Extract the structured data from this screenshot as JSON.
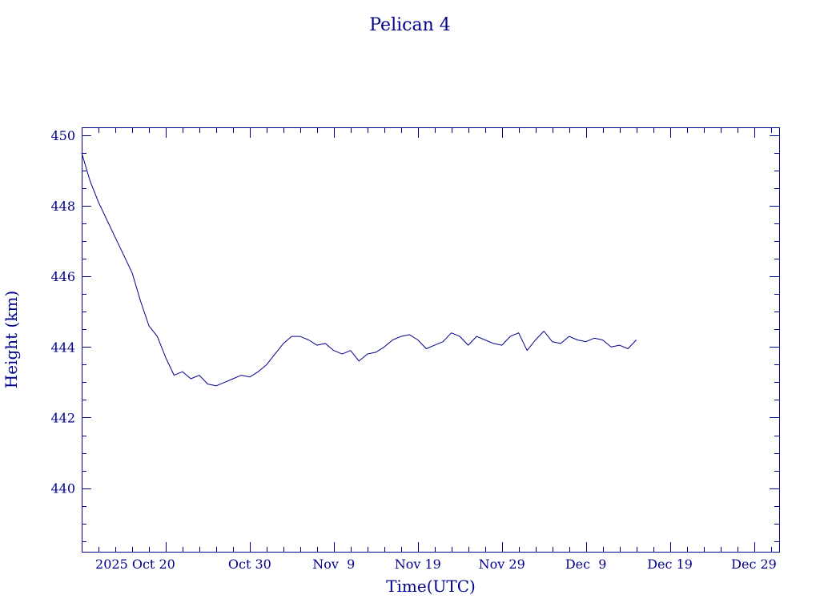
{
  "chart_data": {
    "type": "line",
    "title": "Pelican 4",
    "xlabel": "Time(UTC)",
    "ylabel": "Height (km)",
    "x_ticks": [
      "2025 Oct 20",
      "Oct 30",
      "Nov  9",
      "Nov 19",
      "Nov 29",
      "Dec  9",
      "Dec 19",
      "Dec 29"
    ],
    "y_ticks": [
      "440",
      "442",
      "444",
      "446",
      "448",
      "450"
    ],
    "xlim": [
      "2025-10-10",
      "2026-01-01"
    ],
    "ylim": [
      438.2,
      450.2
    ],
    "grid": false,
    "series": [
      {
        "color": "#00008b",
        "x": [
          "2025-10-10",
          "2025-10-11",
          "2025-10-12",
          "2025-10-13",
          "2025-10-14",
          "2025-10-15",
          "2025-10-16",
          "2025-10-17",
          "2025-10-18",
          "2025-10-19",
          "2025-10-20",
          "2025-10-21",
          "2025-10-22",
          "2025-10-23",
          "2025-10-24",
          "2025-10-25",
          "2025-10-26",
          "2025-10-27",
          "2025-10-28",
          "2025-10-29",
          "2025-10-30",
          "2025-10-31",
          "2025-11-01",
          "2025-11-02",
          "2025-11-03",
          "2025-11-04",
          "2025-11-05",
          "2025-11-06",
          "2025-11-07",
          "2025-11-08",
          "2025-11-09",
          "2025-11-10",
          "2025-11-11",
          "2025-11-12",
          "2025-11-13",
          "2025-11-14",
          "2025-11-15",
          "2025-11-16",
          "2025-11-17",
          "2025-11-18",
          "2025-11-19",
          "2025-11-20",
          "2025-11-21",
          "2025-11-22",
          "2025-11-23",
          "2025-11-24",
          "2025-11-25",
          "2025-11-26",
          "2025-11-27",
          "2025-11-28",
          "2025-11-29",
          "2025-11-30",
          "2025-12-01",
          "2025-12-02",
          "2025-12-03",
          "2025-12-04",
          "2025-12-05",
          "2025-12-06",
          "2025-12-07",
          "2025-12-08",
          "2025-12-09",
          "2025-12-10",
          "2025-12-11",
          "2025-12-12",
          "2025-12-13",
          "2025-12-14",
          "2025-12-15"
        ],
        "y": [
          449.5,
          448.7,
          448.1,
          447.6,
          447.1,
          446.6,
          446.1,
          445.3,
          444.6,
          444.3,
          443.7,
          443.2,
          443.3,
          443.1,
          443.2,
          442.95,
          442.9,
          443.0,
          443.1,
          443.2,
          443.15,
          443.3,
          443.5,
          443.8,
          444.1,
          444.3,
          444.3,
          444.2,
          444.05,
          444.1,
          443.9,
          443.8,
          443.9,
          443.6,
          443.8,
          443.85,
          444.0,
          444.2,
          444.3,
          444.35,
          444.2,
          443.95,
          444.05,
          444.15,
          444.4,
          444.3,
          444.05,
          444.3,
          444.2,
          444.1,
          444.05,
          444.3,
          444.4,
          443.9,
          444.2,
          444.45,
          444.15,
          444.1,
          444.3,
          444.2,
          444.15,
          444.25,
          444.2,
          444.0,
          444.05,
          443.95,
          444.2
        ]
      }
    ]
  }
}
